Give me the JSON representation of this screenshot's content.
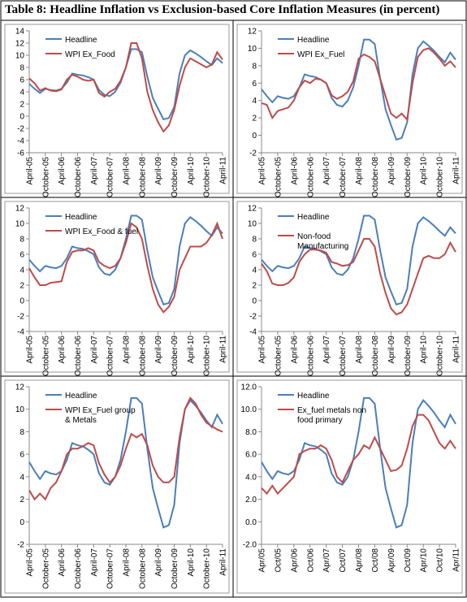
{
  "title": "Table 8: Headline Inflation vs Exclusion-based Core Inflation Measures (in percent)",
  "chart_data": [
    {
      "type": "line",
      "legend": "upper left",
      "grid": false,
      "categories": [
        "April-05",
        null,
        null,
        "October-05",
        null,
        null,
        "April-06",
        null,
        null,
        "October-06",
        null,
        null,
        "April-07",
        null,
        null,
        "October-07",
        null,
        null,
        "April-08",
        null,
        null,
        "October-08",
        null,
        null,
        "April-09",
        null,
        null,
        "October-09",
        null,
        null,
        "April-10",
        null,
        null,
        "October-10",
        null,
        null,
        "April-11"
      ],
      "ylim": [
        -6,
        14
      ],
      "yticks": [
        -6,
        -4,
        -2,
        0,
        2,
        4,
        6,
        8,
        10,
        12,
        14
      ],
      "series": [
        {
          "name": "Headline",
          "color": "#4a7ebb",
          "values": [
            5.3,
            4.5,
            3.8,
            4.5,
            4.3,
            4.2,
            4.5,
            5.5,
            7.0,
            6.8,
            6.7,
            6.4,
            6.0,
            4.3,
            3.5,
            3.3,
            4.0,
            5.5,
            8.0,
            11.0,
            11.0,
            10.5,
            6.5,
            3.0,
            1.2,
            -0.5,
            -0.3,
            1.5,
            7.0,
            10.0,
            10.8,
            10.3,
            9.7,
            9.0,
            8.4,
            9.5,
            8.7
          ]
        },
        {
          "name": "WPI Ex_Food",
          "color": "#be4b48",
          "values": [
            6.2,
            5.4,
            4.2,
            4.6,
            4.2,
            4.1,
            4.4,
            6.0,
            6.8,
            6.5,
            6.0,
            5.8,
            6.0,
            3.8,
            3.2,
            4.0,
            4.5,
            5.8,
            8.0,
            12.0,
            12.0,
            9.5,
            4.0,
            1.0,
            -1.0,
            -2.5,
            -1.5,
            1.0,
            5.0,
            8.0,
            9.5,
            9.0,
            8.5,
            8.0,
            8.5,
            10.5,
            9.3
          ]
        }
      ]
    },
    {
      "type": "line",
      "legend": "upper left",
      "grid": false,
      "categories": [
        "April-05",
        null,
        null,
        "October-05",
        null,
        null,
        "April-06",
        null,
        null,
        "October-06",
        null,
        null,
        "April-07",
        null,
        null,
        "October-07",
        null,
        null,
        "April-08",
        null,
        null,
        "October-08",
        null,
        null,
        "April-09",
        null,
        null,
        "October-09",
        null,
        null,
        "April-10",
        null,
        null,
        "October-10",
        null,
        null,
        "April-11"
      ],
      "ylim": [
        -2,
        12
      ],
      "yticks": [
        -2,
        0,
        2,
        4,
        6,
        8,
        10,
        12
      ],
      "series": [
        {
          "name": "Headline",
          "color": "#4a7ebb",
          "values": [
            5.3,
            4.5,
            3.8,
            4.5,
            4.3,
            4.2,
            4.5,
            5.5,
            7.0,
            6.8,
            6.7,
            6.4,
            6.0,
            4.3,
            3.5,
            3.3,
            4.0,
            5.5,
            8.0,
            11.0,
            11.0,
            10.5,
            6.5,
            3.0,
            1.2,
            -0.5,
            -0.3,
            1.5,
            7.0,
            10.0,
            10.8,
            10.3,
            9.7,
            9.0,
            8.4,
            9.5,
            8.7
          ]
        },
        {
          "name": "WPI Ex_Fuel",
          "color": "#be4b48",
          "values": [
            3.7,
            3.5,
            2.0,
            2.8,
            3.0,
            3.2,
            4.0,
            5.5,
            6.3,
            6.0,
            6.5,
            6.4,
            6.0,
            4.6,
            4.2,
            4.5,
            5.0,
            6.2,
            8.8,
            9.3,
            9.0,
            8.5,
            6.5,
            4.5,
            2.5,
            2.0,
            2.5,
            1.8,
            6.0,
            9.0,
            9.8,
            10.0,
            9.5,
            8.8,
            8.0,
            8.5,
            7.8
          ]
        }
      ]
    },
    {
      "type": "line",
      "legend": "upper left",
      "grid": false,
      "categories": [
        "April-05",
        null,
        null,
        "October-05",
        null,
        null,
        "April-06",
        null,
        null,
        "October-06",
        null,
        null,
        "April-07",
        null,
        null,
        "October-07",
        null,
        null,
        "April-08",
        null,
        null,
        "October-08",
        null,
        null,
        "April-09",
        null,
        null,
        "October-09",
        null,
        null,
        "April-10",
        null,
        null,
        "October-10",
        null,
        null,
        "April-11"
      ],
      "ylim": [
        -4,
        12
      ],
      "yticks": [
        -4,
        -2,
        0,
        2,
        4,
        6,
        8,
        10,
        12
      ],
      "series": [
        {
          "name": "Headline",
          "color": "#4a7ebb",
          "values": [
            5.3,
            4.5,
            3.8,
            4.5,
            4.3,
            4.2,
            4.5,
            5.5,
            7.0,
            6.8,
            6.7,
            6.4,
            6.0,
            4.3,
            3.5,
            3.3,
            4.0,
            5.5,
            8.0,
            11.0,
            11.0,
            10.5,
            6.5,
            3.0,
            1.2,
            -0.5,
            -0.3,
            1.5,
            7.0,
            10.0,
            10.8,
            10.3,
            9.7,
            9.0,
            8.4,
            9.5,
            8.7
          ]
        },
        {
          "name": "WPI Ex_Food & fuel",
          "color": "#be4b48",
          "values": [
            4.2,
            3.0,
            2.0,
            2.0,
            2.3,
            2.4,
            2.5,
            5.0,
            6.3,
            6.5,
            6.5,
            6.8,
            6.5,
            5.0,
            4.5,
            4.2,
            4.5,
            5.5,
            7.5,
            10.0,
            9.5,
            8.0,
            4.5,
            1.5,
            -0.5,
            -1.5,
            -0.8,
            0.5,
            4.0,
            5.5,
            7.0,
            7.0,
            7.0,
            7.5,
            8.5,
            10.0,
            8.0
          ]
        }
      ]
    },
    {
      "type": "line",
      "legend": "upper left",
      "grid": false,
      "categories": [
        "April-05",
        null,
        null,
        "October-05",
        null,
        null,
        "April-06",
        null,
        null,
        "October-06",
        null,
        null,
        "April-07",
        null,
        null,
        "October-07",
        null,
        null,
        "April-08",
        null,
        null,
        "October-08",
        null,
        null,
        "April-09",
        null,
        null,
        "October-09",
        null,
        null,
        "April-10",
        null,
        null,
        "October-10",
        null,
        null,
        "April-11"
      ],
      "ylim": [
        -4,
        12
      ],
      "yticks": [
        -4,
        -2,
        0,
        2,
        4,
        6,
        8,
        10,
        12
      ],
      "series": [
        {
          "name": "Headline",
          "color": "#4a7ebb",
          "values": [
            5.3,
            4.5,
            3.8,
            4.5,
            4.3,
            4.2,
            4.5,
            5.5,
            7.0,
            6.8,
            6.7,
            6.4,
            6.0,
            4.3,
            3.5,
            3.3,
            4.0,
            5.5,
            8.0,
            11.0,
            11.0,
            10.5,
            6.5,
            3.0,
            1.2,
            -0.5,
            -0.3,
            1.5,
            7.0,
            10.0,
            10.8,
            10.3,
            9.7,
            9.0,
            8.4,
            9.5,
            8.7
          ]
        },
        {
          "name": "Non-food Manufacturing",
          "color": "#be4b48",
          "values": [
            4.8,
            3.8,
            2.2,
            2.0,
            2.0,
            2.3,
            3.0,
            5.0,
            6.0,
            6.6,
            6.6,
            6.5,
            6.2,
            5.0,
            4.8,
            4.5,
            4.6,
            5.0,
            6.5,
            8.0,
            8.0,
            7.0,
            3.5,
            1.0,
            -1.0,
            -1.8,
            -1.5,
            -0.5,
            1.5,
            3.5,
            5.5,
            5.8,
            5.5,
            5.5,
            6.0,
            7.5,
            6.3
          ]
        }
      ]
    },
    {
      "type": "line",
      "legend": "upper left",
      "grid": false,
      "categories": [
        "April-05",
        null,
        null,
        "October-05",
        null,
        null,
        "April-06",
        null,
        null,
        "October-06",
        null,
        null,
        "April-07",
        null,
        null,
        "October-07",
        null,
        null,
        "April-08",
        null,
        null,
        "October-08",
        null,
        null,
        "April-09",
        null,
        null,
        "October-09",
        null,
        null,
        "April-10",
        null,
        null,
        "October-10",
        null,
        null,
        "April-11"
      ],
      "ylim": [
        -2,
        12
      ],
      "yticks": [
        -2,
        0,
        2,
        4,
        6,
        8,
        10,
        12
      ],
      "series": [
        {
          "name": "Headline",
          "color": "#4a7ebb",
          "values": [
            5.3,
            4.5,
            3.8,
            4.5,
            4.3,
            4.2,
            4.5,
            5.5,
            7.0,
            6.8,
            6.7,
            6.4,
            6.0,
            4.3,
            3.5,
            3.3,
            4.0,
            5.5,
            8.0,
            11.0,
            11.0,
            10.5,
            6.5,
            3.0,
            1.2,
            -0.5,
            -0.3,
            1.5,
            7.0,
            10.0,
            10.8,
            10.3,
            9.7,
            9.0,
            8.4,
            9.5,
            8.7
          ]
        },
        {
          "name": "WPI Ex_Fuel group & Metals",
          "color": "#be4b48",
          "values": [
            2.8,
            2.0,
            2.5,
            2.0,
            3.0,
            3.5,
            4.5,
            6.0,
            6.5,
            6.5,
            6.7,
            7.0,
            6.8,
            5.2,
            4.2,
            3.5,
            4.0,
            5.0,
            6.5,
            7.8,
            7.5,
            7.8,
            6.8,
            5.0,
            4.0,
            3.5,
            3.5,
            4.0,
            7.5,
            10.0,
            11.0,
            10.5,
            9.5,
            8.8,
            8.5,
            8.2,
            8.0
          ]
        }
      ]
    },
    {
      "type": "line",
      "legend": "upper left",
      "grid": false,
      "categories": [
        "Apr/05",
        null,
        null,
        "Oct/05",
        null,
        null,
        "Apr/06",
        null,
        null,
        "Oct/06",
        null,
        null,
        "Apr/07",
        null,
        null,
        "Oct/07",
        null,
        null,
        "Apr/08",
        null,
        null,
        "Oct/08",
        null,
        null,
        "Apr/09",
        null,
        null,
        "Oct/09",
        null,
        null,
        "Apr/10",
        null,
        null,
        "Oct/10",
        null,
        null,
        "Apr/11"
      ],
      "ylim": [
        -2,
        12
      ],
      "yticks": [
        {
          "value": -2,
          "label": "-2.0"
        },
        {
          "value": 0,
          "label": "0.0"
        },
        {
          "value": 2,
          "label": "2.0"
        },
        {
          "value": 4,
          "label": "4.0"
        },
        {
          "value": 6,
          "label": "6.0"
        },
        {
          "value": 8,
          "label": "8.0"
        },
        {
          "value": 10,
          "label": "10.0"
        },
        {
          "value": 12,
          "label": "12.0"
        }
      ],
      "series": [
        {
          "name": "Headline",
          "color": "#4a7ebb",
          "values": [
            5.3,
            4.5,
            3.8,
            4.5,
            4.3,
            4.2,
            4.5,
            5.5,
            7.0,
            6.8,
            6.7,
            6.4,
            6.0,
            4.3,
            3.5,
            3.3,
            4.0,
            5.5,
            8.0,
            11.0,
            11.0,
            10.5,
            6.5,
            3.0,
            1.2,
            -0.5,
            -0.3,
            1.5,
            7.0,
            10.0,
            10.8,
            10.3,
            9.7,
            9.0,
            8.4,
            9.5,
            8.7
          ]
        },
        {
          "name": "Ex_fuel metals non food primary",
          "color": "#be4b48",
          "values": [
            3.0,
            2.5,
            3.2,
            2.5,
            3.0,
            3.5,
            4.0,
            6.0,
            6.3,
            6.5,
            6.5,
            6.8,
            6.5,
            5.5,
            4.0,
            3.5,
            4.5,
            5.5,
            6.0,
            6.8,
            6.5,
            7.5,
            6.5,
            5.5,
            4.5,
            4.6,
            5.0,
            6.5,
            8.5,
            9.5,
            9.5,
            9.0,
            8.0,
            7.0,
            6.5,
            7.2,
            6.5
          ]
        }
      ]
    }
  ]
}
